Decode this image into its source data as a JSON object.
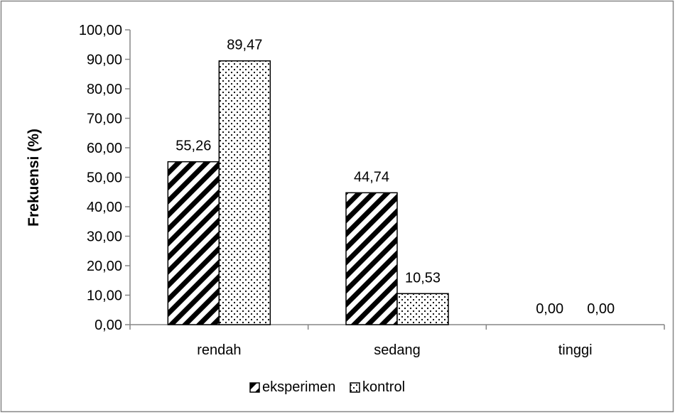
{
  "chart_data": {
    "type": "bar",
    "categories": [
      "rendah",
      "sedang",
      "tinggi"
    ],
    "series": [
      {
        "name": "eksperimen",
        "values": [
          55.26,
          44.74,
          0.0
        ],
        "labels": [
          "55,26",
          "44,74",
          "0,00"
        ],
        "pattern": "diagonal-stripes"
      },
      {
        "name": "kontrol",
        "values": [
          89.47,
          10.53,
          0.0
        ],
        "labels": [
          "89,47",
          "10,53",
          "0,00"
        ],
        "pattern": "dots"
      }
    ],
    "title": "",
    "xlabel": "",
    "ylabel": "Frekuensi (%)",
    "ylim": [
      0,
      100
    ],
    "yticks": [
      0,
      10,
      20,
      30,
      40,
      50,
      60,
      70,
      80,
      90,
      100
    ],
    "ytick_labels": [
      "0,00",
      "10,00",
      "20,00",
      "30,00",
      "40,00",
      "50,00",
      "60,00",
      "70,00",
      "80,00",
      "90,00",
      "100,00"
    ],
    "grid": false,
    "legend_position": "bottom-center",
    "colors": {
      "bar_fill": "#ffffff",
      "pattern": "#000000",
      "border": "#000000",
      "frame": "#868686",
      "axis": "#868686"
    }
  }
}
